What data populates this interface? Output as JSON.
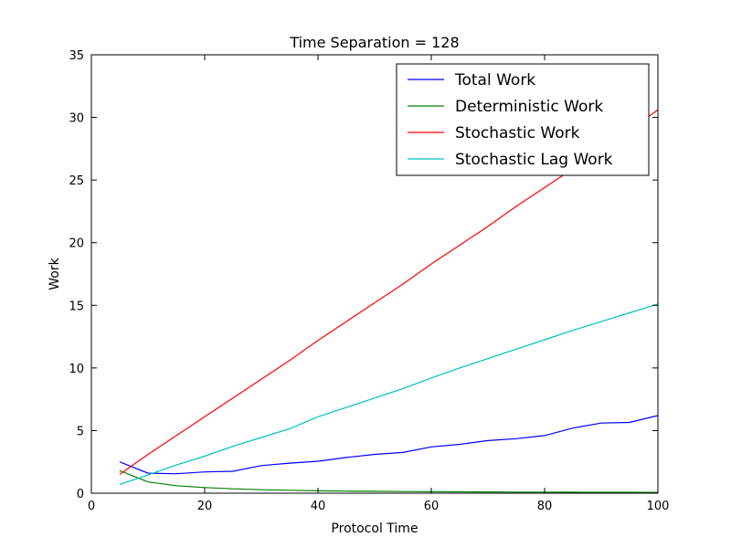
{
  "chart_data": {
    "type": "line",
    "title": "Time Separation = 128",
    "xlabel": "Protocol Time",
    "ylabel": "Work",
    "xlim": [
      0,
      100
    ],
    "ylim": [
      0,
      35
    ],
    "xticks": [
      0,
      20,
      40,
      60,
      80,
      100
    ],
    "yticks": [
      0,
      5,
      10,
      15,
      20,
      25,
      30,
      35
    ],
    "grid": false,
    "legend_position": "top-right",
    "x": [
      5,
      10,
      15,
      20,
      25,
      30,
      35,
      40,
      45,
      50,
      55,
      60,
      65,
      70,
      75,
      80,
      85,
      90,
      95,
      100
    ],
    "series": [
      {
        "name": "Total Work",
        "color": "#0000ff",
        "values": [
          2.5,
          1.6,
          1.55,
          1.7,
          1.75,
          2.2,
          2.4,
          2.55,
          2.85,
          3.1,
          3.25,
          3.7,
          3.9,
          4.2,
          4.35,
          4.6,
          5.2,
          5.6,
          5.65,
          6.2
        ]
      },
      {
        "name": "Deterministic Work",
        "color": "#008000",
        "values": [
          1.8,
          0.9,
          0.6,
          0.45,
          0.35,
          0.28,
          0.23,
          0.19,
          0.17,
          0.15,
          0.13,
          0.12,
          0.11,
          0.1,
          0.09,
          0.085,
          0.08,
          0.075,
          0.07,
          0.065
        ]
      },
      {
        "name": "Stochastic Work",
        "color": "#ff0000",
        "values": [
          1.5,
          3.1,
          4.6,
          6.1,
          7.6,
          9.1,
          10.6,
          12.2,
          13.7,
          15.2,
          16.7,
          18.3,
          19.8,
          21.3,
          22.9,
          24.4,
          25.9,
          27.5,
          29.0,
          30.6
        ]
      },
      {
        "name": "Stochastic Lag Work",
        "color": "#00bfbf",
        "values": [
          0.7,
          1.45,
          2.25,
          2.95,
          3.75,
          4.45,
          5.15,
          6.1,
          6.85,
          7.6,
          8.35,
          9.2,
          10.0,
          10.75,
          11.5,
          12.25,
          13.0,
          13.7,
          14.4,
          15.1
        ]
      }
    ]
  }
}
